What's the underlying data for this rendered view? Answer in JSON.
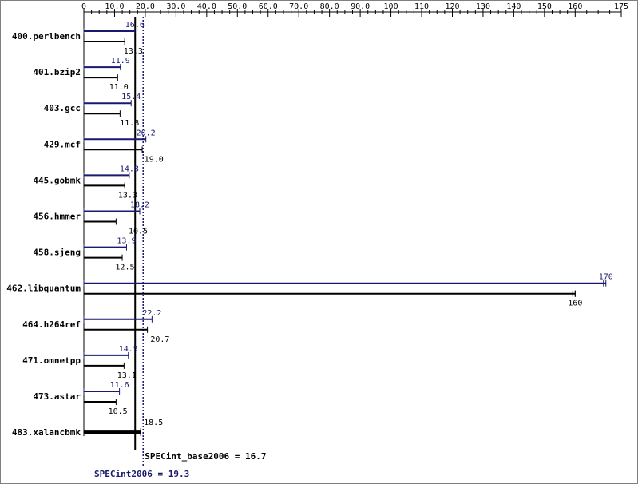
{
  "chart_data": {
    "type": "bar",
    "orientation": "horizontal",
    "x_ticks": [
      0,
      10.0,
      20.0,
      30.0,
      40.0,
      50.0,
      60.0,
      70.0,
      80.0,
      90.0,
      100,
      110,
      120,
      130,
      140,
      150,
      160,
      175
    ],
    "x_tick_labels": [
      "0",
      "10.0",
      "20.0",
      "30.0",
      "40.0",
      "50.0",
      "60.0",
      "70.0",
      "80.0",
      "90.0",
      "100",
      "110",
      "120",
      "130",
      "140",
      "150",
      "160",
      "175"
    ],
    "xlim": [
      0,
      175
    ],
    "categories": [
      "400.perlbench",
      "401.bzip2",
      "403.gcc",
      "429.mcf",
      "445.gobmk",
      "456.hmmer",
      "458.sjeng",
      "462.libquantum",
      "464.h264ref",
      "471.omnetpp",
      "473.astar",
      "483.xalancbmk"
    ],
    "series": [
      {
        "key": "peak",
        "color": "#191970",
        "values": [
          16.6,
          11.9,
          15.4,
          20.2,
          14.8,
          18.2,
          13.9,
          170,
          22.2,
          14.5,
          11.6,
          null
        ],
        "labels": [
          "16.6",
          "11.9",
          "15.4",
          "20.2",
          "14.8",
          "18.2",
          "13.9",
          "170",
          "22.2",
          "14.5",
          "11.6",
          ""
        ]
      },
      {
        "key": "base",
        "color": "#000000",
        "values": [
          13.3,
          11.0,
          11.8,
          19.0,
          13.3,
          10.5,
          12.5,
          160,
          20.7,
          13.1,
          10.5,
          18.5
        ],
        "labels": [
          "13.3",
          "11.0",
          "11.8",
          "19.0",
          "13.3",
          "10.5",
          "12.5",
          "160",
          "20.7",
          "13.1",
          "10.5",
          "18.5"
        ]
      }
    ],
    "reference_lines": [
      {
        "key": "base",
        "value": 16.7,
        "label": "SPECint_base2006 = 16.7",
        "color": "#000000",
        "style": "solid"
      },
      {
        "key": "peak",
        "value": 19.3,
        "label": "SPECint2006 = 19.3",
        "color": "#191970",
        "style": "dotted"
      }
    ],
    "grid": false,
    "legend": "none"
  }
}
